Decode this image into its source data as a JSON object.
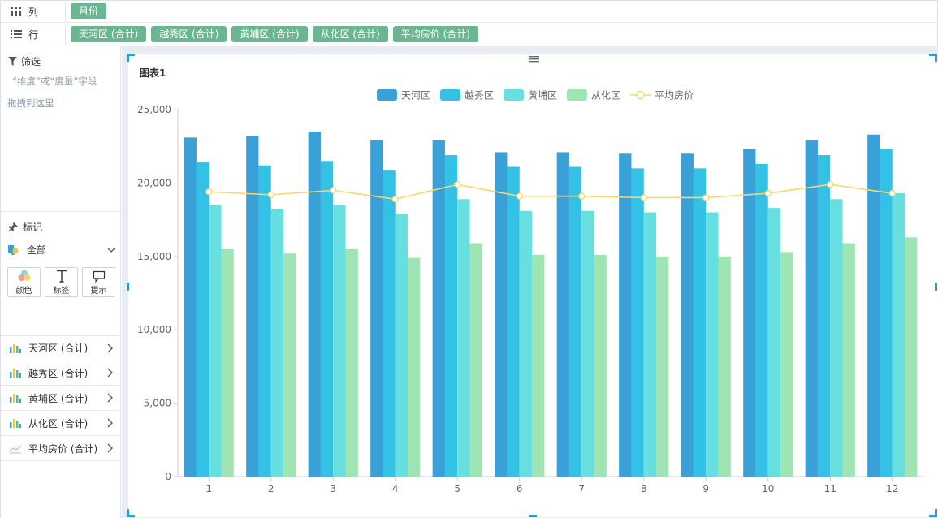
{
  "shelves": {
    "columns": {
      "label": "列",
      "pills": [
        "月份"
      ]
    },
    "rows": {
      "label": "行",
      "pills": [
        "天河区 (合计)",
        "越秀区 (合计)",
        "黄埔区 (合计)",
        "从化区 (合计)",
        "平均房价 (合计)"
      ]
    }
  },
  "filter": {
    "label": "筛选",
    "hint_line1": "“维度”或“度量”字段",
    "hint_line2": "拖拽到这里"
  },
  "marks": {
    "label": "标记",
    "type_label": "全部",
    "buttons": {
      "color": "颜色",
      "label": "标签",
      "tooltip": "提示"
    },
    "fields": [
      "天河区 (合计)",
      "越秀区 (合计)",
      "黄埔区 (合计)",
      "从化区 (合计)",
      "平均房价 (合计)"
    ]
  },
  "colors": {
    "pill": "#6ab592",
    "accent": "#2f9bd1",
    "series": [
      "#3aa0d8",
      "#33c1e6",
      "#67dfe0",
      "#9fe4b3"
    ],
    "line": "#f5d76e"
  },
  "chart_data": {
    "type": "bar",
    "title": "图表1",
    "categories": [
      "1",
      "2",
      "3",
      "4",
      "5",
      "6",
      "7",
      "8",
      "9",
      "10",
      "11",
      "12"
    ],
    "series": [
      {
        "name": "天河区",
        "type": "bar",
        "values": [
          23100,
          23200,
          23500,
          22900,
          22900,
          22100,
          22100,
          22000,
          22000,
          22300,
          22900,
          23300
        ]
      },
      {
        "name": "越秀区",
        "type": "bar",
        "values": [
          21400,
          21200,
          21500,
          20900,
          21900,
          21100,
          21100,
          21000,
          21000,
          21300,
          21900,
          22300
        ]
      },
      {
        "name": "黄埔区",
        "type": "bar",
        "values": [
          18500,
          18200,
          18500,
          17900,
          18900,
          18100,
          18100,
          18000,
          18000,
          18300,
          18900,
          19300
        ]
      },
      {
        "name": "从化区",
        "type": "bar",
        "values": [
          15500,
          15200,
          15500,
          14900,
          15900,
          15100,
          15100,
          15000,
          15000,
          15300,
          15900,
          16300
        ]
      },
      {
        "name": "平均房价",
        "type": "line",
        "values": [
          19400,
          19200,
          19500,
          18900,
          19900,
          19100,
          19100,
          19000,
          19000,
          19300,
          19900,
          19300
        ]
      }
    ],
    "ylim": [
      0,
      25000
    ],
    "yticks": [
      "0",
      "5,000",
      "10,000",
      "15,000",
      "20,000",
      "25,000"
    ],
    "legend": "top-center",
    "grid": false
  }
}
